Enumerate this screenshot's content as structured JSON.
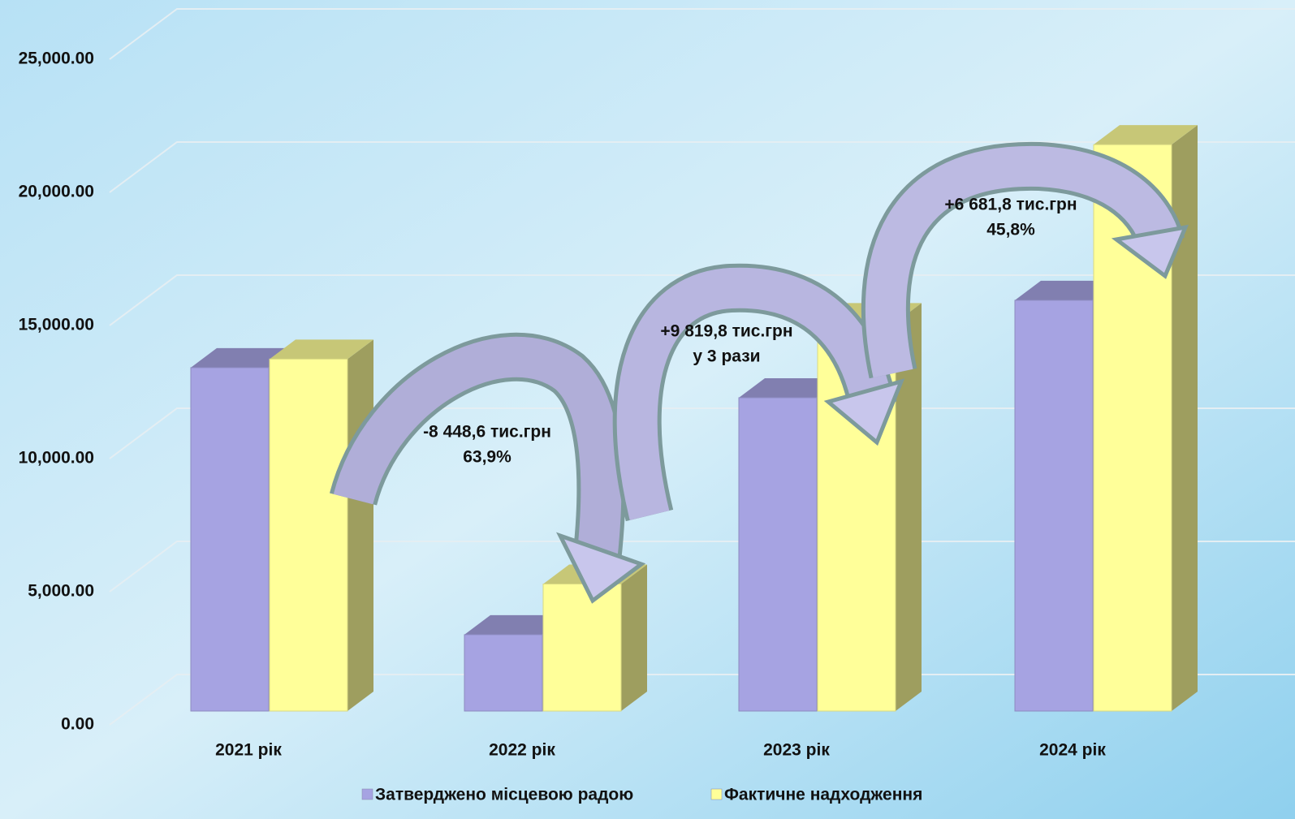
{
  "chart_data": {
    "type": "bar3d",
    "categories": [
      "2021 рік",
      "2022 рік",
      "2023 рік",
      "2024 рік"
    ],
    "series": [
      {
        "name": "Затверджено місцевою радою",
        "color": "#a6a3e2",
        "values": [
          12900,
          2870,
          11770,
          15430
        ]
      },
      {
        "name": "Фактичне надходження",
        "color": "#ffff99",
        "values": [
          13222,
          4773,
          14593,
          21275
        ]
      }
    ],
    "ylim": [
      0,
      25000
    ],
    "yticks": [
      {
        "value": 0,
        "label": "0.00"
      },
      {
        "value": 5000,
        "label": "5,000.00"
      },
      {
        "value": 10000,
        "label": "10,000.00"
      },
      {
        "value": 15000,
        "label": "15,000.00"
      },
      {
        "value": 20000,
        "label": "20,000.00"
      },
      {
        "value": 25000,
        "label": "25,000.00"
      }
    ],
    "grid": true,
    "legend": "bottom",
    "annotations": [
      [
        "-8 448,6 тис.грн",
        "63,9%"
      ],
      [
        "+9 819,8 тис.грн",
        "у 3 рази"
      ],
      [
        "+6 681,8 тис.грн",
        "45,8%"
      ]
    ]
  }
}
